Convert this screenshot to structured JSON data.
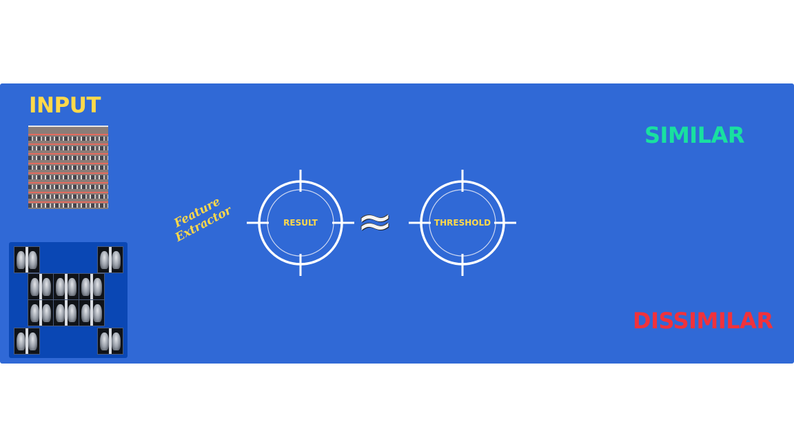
{
  "input": {
    "title": "INPUT"
  },
  "feature_extractor": {
    "label_line1": "Feature",
    "label_line2": "Extractor"
  },
  "result": {
    "label": "RESULT"
  },
  "threshold": {
    "label": "THRESHOLD"
  },
  "operator": {
    "symbol": "≈"
  },
  "outcomes": {
    "similar": "SIMILAR",
    "dissimilar": "DISSIMILAR"
  },
  "colors": {
    "background_panel": "#3069d6",
    "input_title": "#ffd94a",
    "similar": "#19e0a0",
    "dissimilar": "#f0323c",
    "reticle_labels": "#ffd94a",
    "reticle_stroke": "#ffffff"
  },
  "icons": {
    "input_image": "building-photo",
    "image_set": "chest-xray-grid",
    "reticles": "crosshair-icon",
    "approx": "approximately-equal-icon"
  }
}
